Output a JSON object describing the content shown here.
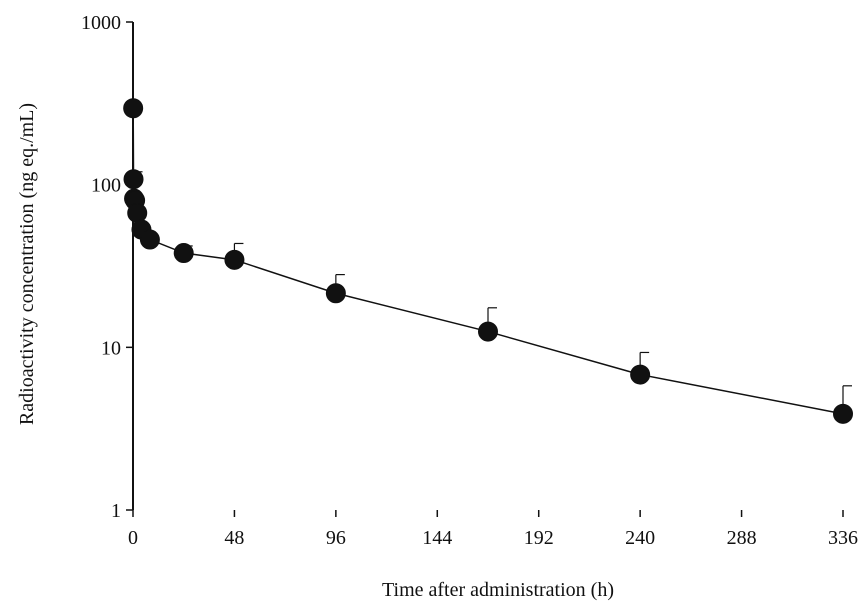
{
  "chart_data": {
    "type": "scatter",
    "xlabel": "Time after administration (h)",
    "ylabel": "Radioactivity concentration (ng eq./mL)",
    "xlim": [
      0,
      336
    ],
    "ylim": [
      1,
      1000
    ],
    "y_scale": "log",
    "xticks": [
      0,
      48,
      96,
      144,
      192,
      240,
      288,
      336
    ],
    "xtick_labels": [
      "0",
      "48",
      "96",
      "144",
      "192",
      "240",
      "288",
      "336"
    ],
    "yticks": [
      1,
      10,
      100,
      1000
    ],
    "ytick_labels": [
      "1",
      "10",
      "100",
      "1000"
    ],
    "grid": false,
    "legend": "none",
    "line_connected": true,
    "series": [
      {
        "x": [
          0.08,
          0.25,
          0.5,
          1,
          2,
          4,
          8,
          24,
          48,
          96,
          168,
          240,
          336
        ],
        "y": [
          295,
          108,
          82,
          80,
          67,
          53,
          46,
          38,
          34.5,
          21.5,
          12.5,
          6.8,
          3.9
        ],
        "error_upper": [
          null,
          120,
          null,
          null,
          null,
          null,
          null,
          42,
          43.5,
          28,
          17.5,
          9.3,
          5.8
        ]
      }
    ]
  }
}
